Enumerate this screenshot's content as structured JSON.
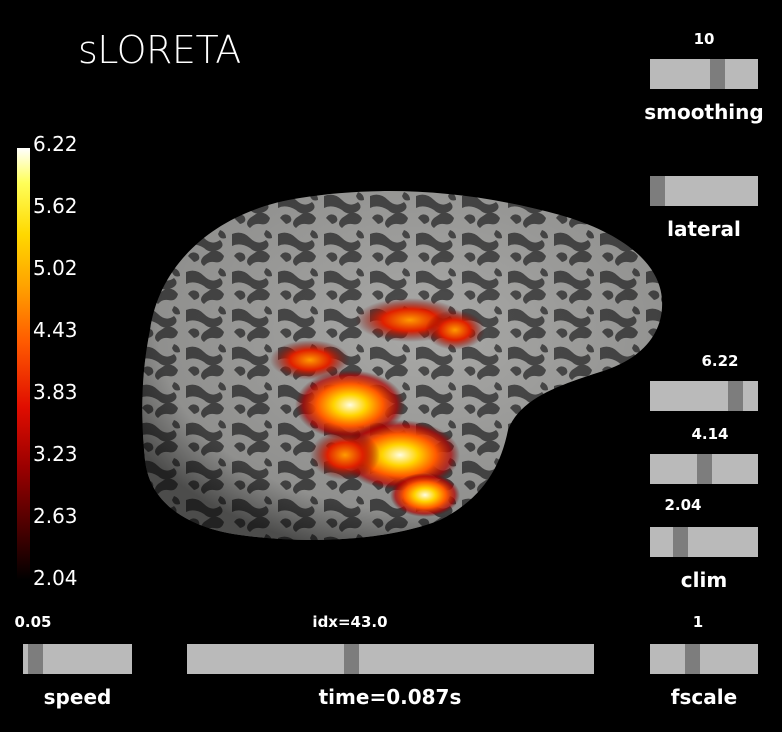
{
  "title": "sLORETA",
  "colorbar": {
    "ticks": [
      "6.22",
      "5.62",
      "5.02",
      "4.43",
      "3.83",
      "3.23",
      "2.63",
      "2.04"
    ],
    "colors": [
      "#000000",
      "#9a0000",
      "#e00d00",
      "#ff5a00",
      "#ffa200",
      "#ffd800",
      "#ffffff"
    ]
  },
  "sliders": {
    "smoothing": {
      "label": "smoothing",
      "value": "10",
      "level": 0.64
    },
    "lateral": {
      "label": "lateral",
      "value": "",
      "level": 0.0
    },
    "clim_high": {
      "value": "6.22",
      "level": 0.84
    },
    "clim_mid": {
      "value": "4.14",
      "level": 0.5
    },
    "clim_low": {
      "value": "2.04",
      "level": 0.25
    },
    "clim": {
      "label": "clim"
    },
    "speed": {
      "label": "speed",
      "value": "0.05",
      "level": 0.05
    },
    "time": {
      "label": "time=0.087s",
      "value": "idx=43.0",
      "level": 0.4
    },
    "fscale": {
      "label": "fscale",
      "value": "1",
      "level": 0.38
    }
  }
}
